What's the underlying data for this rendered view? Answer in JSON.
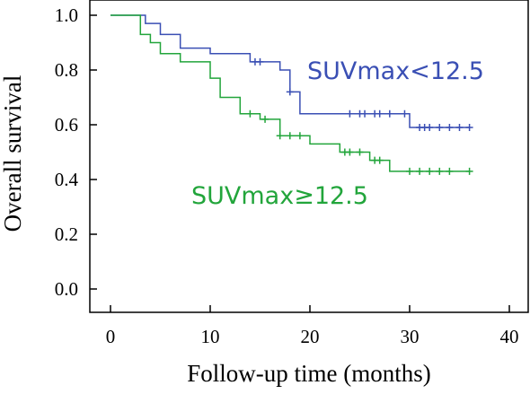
{
  "chart_data": {
    "type": "line",
    "title": "",
    "xlabel": "Follow-up time (months)",
    "ylabel": "Overall survival",
    "xlim": [
      0,
      40
    ],
    "ylim": [
      0,
      1
    ],
    "xticks": [
      0,
      10,
      20,
      30,
      40
    ],
    "yticks": [
      0.0,
      0.2,
      0.4,
      0.6,
      0.8,
      1.0
    ],
    "xtick_labels": [
      "0",
      "10",
      "20",
      "30",
      "40"
    ],
    "ytick_labels": [
      "0.0",
      "0.2",
      "0.4",
      "0.6",
      "0.8",
      "1.0"
    ],
    "grid": false,
    "step": true,
    "series": [
      {
        "name": "SUVmax<12.5",
        "color": "#3a4fb4",
        "x": [
          0,
          3.5,
          5,
          7,
          10,
          14,
          17,
          18,
          19,
          30,
          36
        ],
        "y": [
          1.0,
          0.97,
          0.93,
          0.88,
          0.86,
          0.83,
          0.8,
          0.72,
          0.64,
          0.59,
          0.59
        ],
        "censored": [
          {
            "x": 14.5,
            "y": 0.83
          },
          {
            "x": 15,
            "y": 0.83
          },
          {
            "x": 18,
            "y": 0.72
          },
          {
            "x": 24,
            "y": 0.64
          },
          {
            "x": 25,
            "y": 0.64
          },
          {
            "x": 25.5,
            "y": 0.64
          },
          {
            "x": 26.5,
            "y": 0.64
          },
          {
            "x": 27,
            "y": 0.64
          },
          {
            "x": 28,
            "y": 0.64
          },
          {
            "x": 29.5,
            "y": 0.64
          },
          {
            "x": 31,
            "y": 0.59
          },
          {
            "x": 31.5,
            "y": 0.59
          },
          {
            "x": 32,
            "y": 0.59
          },
          {
            "x": 33,
            "y": 0.59
          },
          {
            "x": 34,
            "y": 0.59
          },
          {
            "x": 35,
            "y": 0.59
          },
          {
            "x": 36,
            "y": 0.59
          }
        ]
      },
      {
        "name": "SUVmax≥12.5",
        "color": "#22a53b",
        "x": [
          0,
          3,
          4,
          5,
          7,
          10,
          11,
          13,
          15,
          17,
          20,
          23,
          26,
          28,
          36
        ],
        "y": [
          1.0,
          0.93,
          0.9,
          0.86,
          0.83,
          0.77,
          0.7,
          0.64,
          0.62,
          0.56,
          0.53,
          0.5,
          0.47,
          0.43,
          0.43
        ],
        "censored": [
          {
            "x": 14,
            "y": 0.64
          },
          {
            "x": 15.5,
            "y": 0.62
          },
          {
            "x": 17,
            "y": 0.56
          },
          {
            "x": 18,
            "y": 0.56
          },
          {
            "x": 19,
            "y": 0.56
          },
          {
            "x": 23.5,
            "y": 0.5
          },
          {
            "x": 24,
            "y": 0.5
          },
          {
            "x": 25,
            "y": 0.5
          },
          {
            "x": 26.5,
            "y": 0.47
          },
          {
            "x": 27,
            "y": 0.47
          },
          {
            "x": 30,
            "y": 0.43
          },
          {
            "x": 31,
            "y": 0.43
          },
          {
            "x": 32,
            "y": 0.43
          },
          {
            "x": 33,
            "y": 0.43
          },
          {
            "x": 34,
            "y": 0.43
          },
          {
            "x": 36,
            "y": 0.43
          }
        ]
      }
    ]
  }
}
